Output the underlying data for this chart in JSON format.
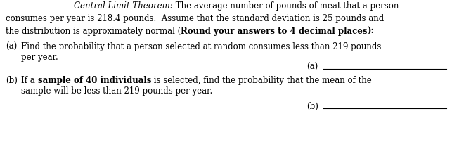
{
  "bg_color": "#ffffff",
  "text_color": "#000000",
  "line_color": "#000000",
  "font_size": 8.5,
  "line1_italic": "Central Limit Theorem:",
  "line1_normal": " The average number of pounds of meat that a person",
  "line2": "consumes per year is 218.4 pounds.  Assume that the standard deviation is 25 pounds and",
  "line3_pre": "the distribution is approximately normal (",
  "line3_bold": "Round your answers to 4 decimal places",
  "line3_post": "):",
  "a_label": "(a)",
  "a_text1": "Find the probability that a person selected at random consumes less than 219 pounds",
  "a_text2": "per year.",
  "ans_a_label": "(a)",
  "b_label": "(b)",
  "b_pre": "If a ",
  "b_bold": "sample of 40 individuals",
  "b_post": " is selected, find the probability that the mean of the",
  "b_text2": "sample will be less than 219 pounds per year.",
  "ans_b_label": "(b)"
}
